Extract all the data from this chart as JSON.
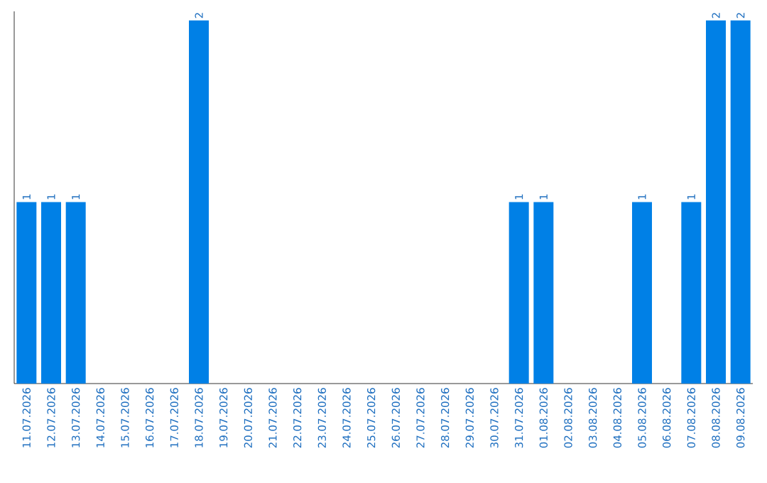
{
  "chart_data": {
    "type": "bar",
    "categories": [
      "11.07.2026",
      "12.07.2026",
      "13.07.2026",
      "14.07.2026",
      "15.07.2026",
      "16.07.2026",
      "17.07.2026",
      "18.07.2026",
      "19.07.2026",
      "20.07.2026",
      "21.07.2026",
      "22.07.2026",
      "23.07.2026",
      "24.07.2026",
      "25.07.2026",
      "26.07.2026",
      "27.07.2026",
      "28.07.2026",
      "29.07.2026",
      "30.07.2026",
      "31.07.2026",
      "01.08.2026",
      "02.08.2026",
      "03.08.2026",
      "04.08.2026",
      "05.08.2026",
      "06.08.2026",
      "07.08.2026",
      "08.08.2026",
      "09.08.2026"
    ],
    "values": [
      1,
      1,
      1,
      0,
      0,
      0,
      0,
      2,
      0,
      0,
      0,
      0,
      0,
      0,
      0,
      0,
      0,
      0,
      0,
      0,
      1,
      1,
      0,
      0,
      0,
      1,
      0,
      1,
      2,
      2
    ],
    "value_labels": [
      "1",
      "1",
      "1",
      null,
      null,
      null,
      null,
      "2",
      null,
      null,
      null,
      null,
      null,
      null,
      null,
      null,
      null,
      null,
      null,
      null,
      "1",
      "1",
      null,
      null,
      null,
      "1",
      null,
      "1",
      "2",
      "2"
    ],
    "color": "#0080e6",
    "ylim": [
      0,
      2.05
    ],
    "tick_labels": "x"
  }
}
